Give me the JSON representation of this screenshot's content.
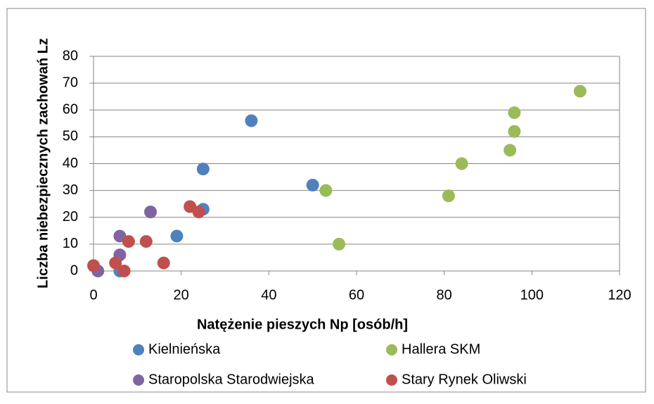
{
  "chart_data": {
    "type": "scatter",
    "xlabel": "Natężenie pieszych Np [osób/h]",
    "ylabel": "Liczba niebezpiecznych zachowań Lz",
    "xlim": [
      0,
      120
    ],
    "xticks": [
      0,
      20,
      40,
      60,
      80,
      100,
      120
    ],
    "ylim": [
      0,
      80
    ],
    "yticks": [
      0,
      10,
      20,
      30,
      40,
      50,
      60,
      70,
      80
    ],
    "grid": true,
    "legend": "bottom",
    "series": [
      {
        "name": "Kielnieńska",
        "color": "#4f81bd",
        "x": [
          36,
          25,
          25,
          50,
          19,
          6
        ],
        "values": [
          56,
          38,
          23,
          32,
          13,
          0
        ]
      },
      {
        "name": "Hallera SKM",
        "color": "#9bbb59",
        "x": [
          111,
          96,
          96,
          95,
          84,
          81,
          53,
          56
        ],
        "values": [
          67,
          59,
          52,
          45,
          40,
          28,
          30,
          10
        ]
      },
      {
        "name": "Staropolska Starodwiejska",
        "color": "#8064a2",
        "x": [
          13,
          6,
          6,
          1
        ],
        "values": [
          22,
          13,
          6,
          0
        ]
      },
      {
        "name": "Stary Rynek Oliwski",
        "color": "#c0504d",
        "x": [
          22,
          24,
          12,
          8,
          16,
          5,
          7,
          0
        ],
        "values": [
          24,
          22,
          11,
          11,
          3,
          3,
          0,
          2
        ]
      }
    ]
  }
}
